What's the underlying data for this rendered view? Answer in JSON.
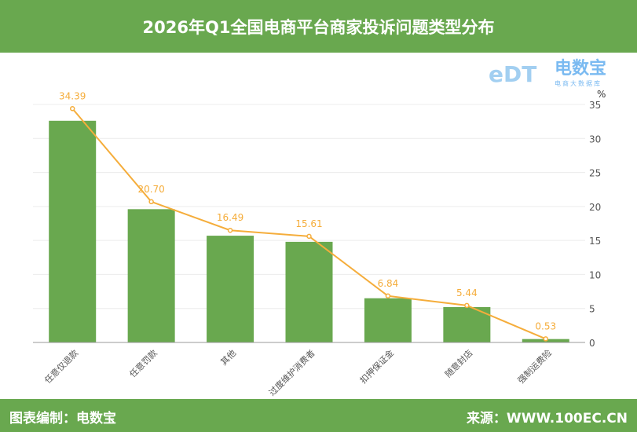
{
  "header": {
    "title": "2026年Q1全国电商平台商家投诉问题类型分布"
  },
  "footer": {
    "credit": "图表编制：电数宝",
    "source": "来源：WWW.100EC.CN"
  },
  "watermark": {
    "brand": "电数宝",
    "tagline": "电商大数据库",
    "logo_text": "eDT"
  },
  "colors": {
    "bar": "#69a84f",
    "line": "#f5ad3b",
    "header": "#69a84f"
  },
  "chart_data": {
    "type": "bar+line",
    "categories": [
      "任意仅退款",
      "任意罚款",
      "其他",
      "过度维护消费者",
      "扣押保证金",
      "随意封店",
      "强制运费险"
    ],
    "bar_values": [
      32.6,
      19.6,
      15.7,
      14.8,
      6.5,
      5.2,
      0.5
    ],
    "line_values": [
      34.39,
      20.7,
      16.49,
      15.61,
      6.84,
      5.44,
      0.53
    ],
    "line_labels": [
      "34.39",
      "20.70",
      "16.49",
      "15.61",
      "6.84",
      "5.44",
      "0.53"
    ],
    "yunit": "%",
    "ylim": [
      0,
      35
    ],
    "yticks": [
      0,
      5,
      10,
      15,
      20,
      25,
      30,
      35
    ],
    "y_axis_side": "right",
    "grid": true
  }
}
